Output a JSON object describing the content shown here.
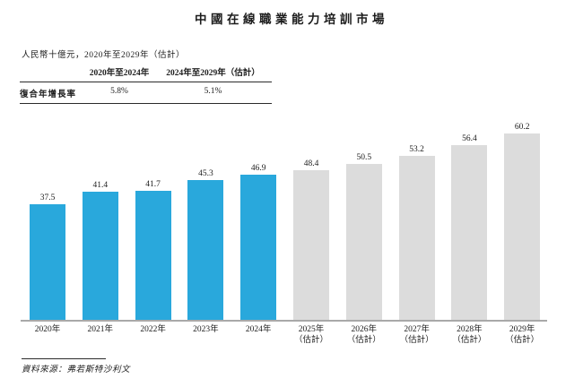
{
  "title": "中國在線職業能力培訓市場",
  "subtitle": "人民幣十億元，2020年至2029年（估計）",
  "cagr_table": {
    "columns": [
      "2020年至2024年",
      "2024年至2029年（估計）"
    ],
    "row_label": "復合年增長率",
    "values": [
      "5.8%",
      "5.1%"
    ]
  },
  "source": "資料來源：弗若斯特沙利文",
  "colors": {
    "actual_bar": "#29a8dc",
    "estimate_bar": "#dcdcdc",
    "axis": "#a9a9a9"
  },
  "chart_data": {
    "type": "bar",
    "title": "中國在線職業能力培訓市場",
    "unit_note": "人民幣十億元，2020年至2029年（估計）",
    "categories": [
      "2020年",
      "2021年",
      "2022年",
      "2023年",
      "2024年",
      "2025年（估計）",
      "2026年（估計）",
      "2027年（估計）",
      "2028年（估計）",
      "2029年（估計）"
    ],
    "values": [
      37.5,
      41.4,
      41.7,
      45.3,
      46.9,
      48.4,
      50.5,
      53.2,
      56.4,
      60.2
    ],
    "num_actual_bars": 5,
    "ylim": [
      0,
      65
    ],
    "grid": false,
    "value_labels": true,
    "legend": "none",
    "cagr": [
      {
        "period": "2020年至2024年",
        "value": "5.8%"
      },
      {
        "period": "2024年至2029年（估計）",
        "value": "5.1%"
      }
    ],
    "source": "資料來源：弗若斯特沙利文"
  }
}
